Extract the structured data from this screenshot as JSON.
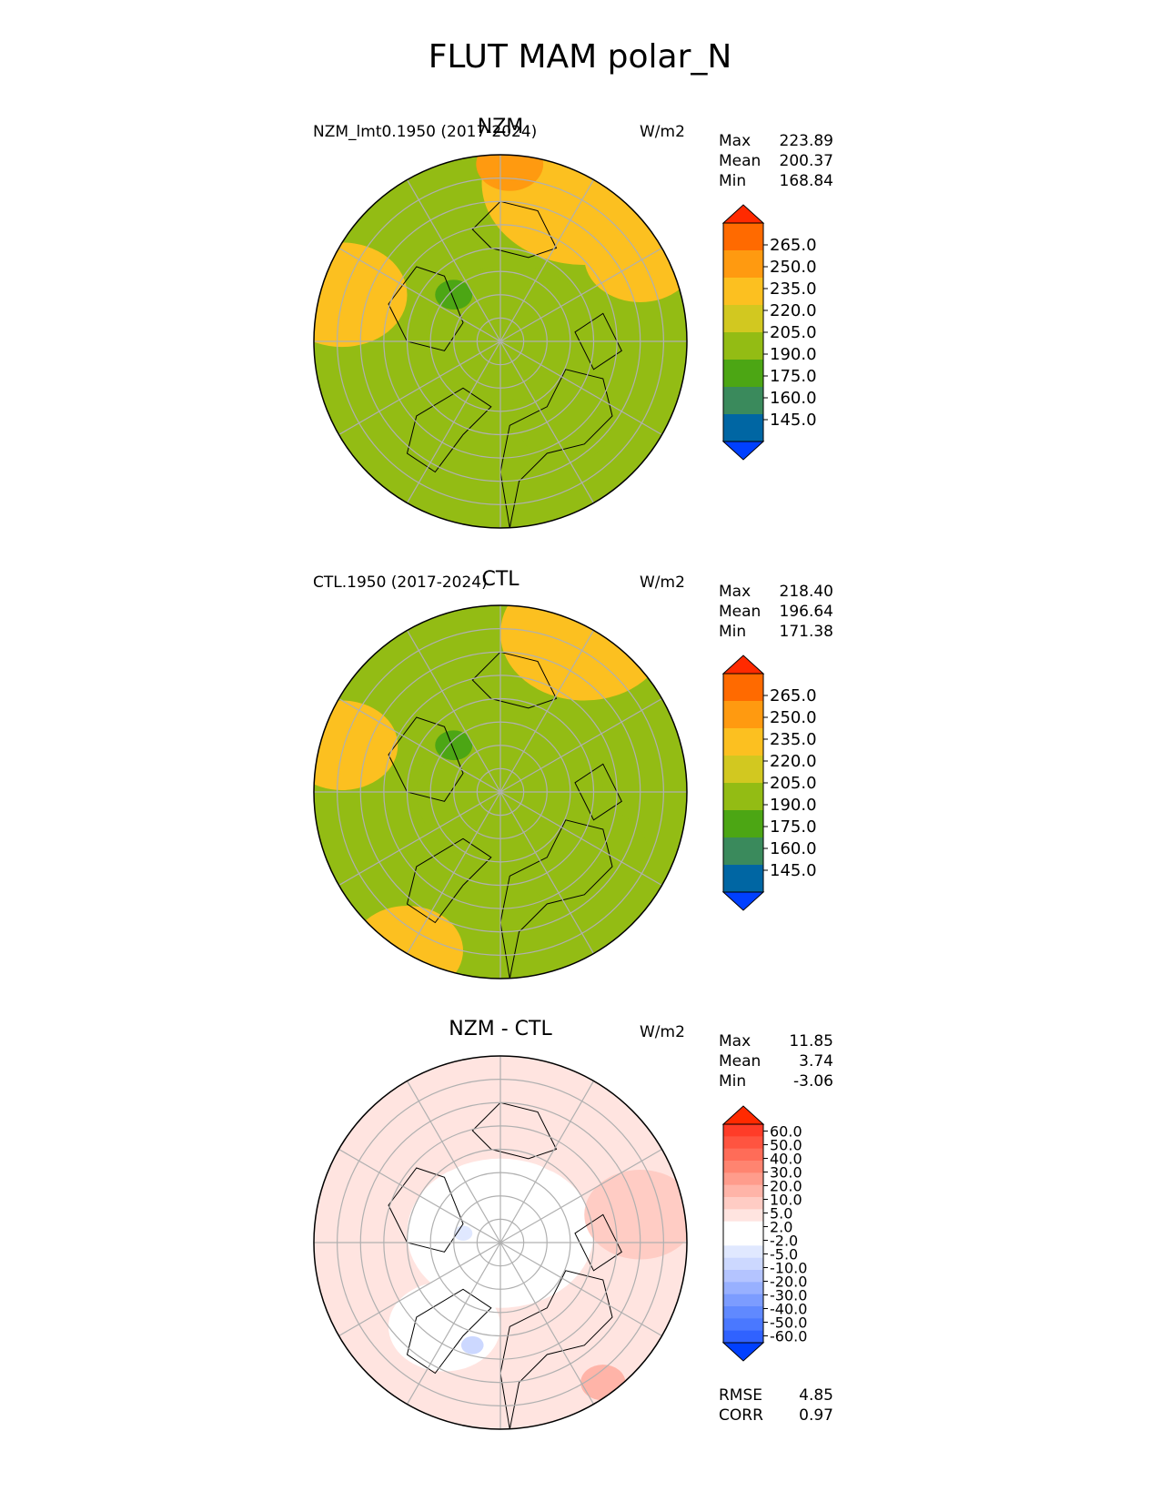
{
  "figure": {
    "title": "FLUT MAM polar_N"
  },
  "colors": {
    "main_levels": [
      "#0040ff",
      "#0066a3",
      "#3a8a5c",
      "#4ca614",
      "#93bc14",
      "#d2c820",
      "#fcc020",
      "#ff9a10",
      "#ff6a00",
      "#ff2a00"
    ],
    "main_ocean": "#93bc14",
    "diff_levels": [
      "#0040ff",
      "#3062ff",
      "#4a78ff",
      "#6089ff",
      "#7c9cff",
      "#98b0ff",
      "#b4c4ff",
      "#ccd8ff",
      "#e0e8ff",
      "#ffffff",
      "#ffffff",
      "#ffe4e0",
      "#ffccc4",
      "#ffb4a8",
      "#ff9c8c",
      "#ff8470",
      "#ff6c58",
      "#ff5440",
      "#ff3c28",
      "#ff2a00"
    ],
    "coast": "#000000",
    "grid": "#b0b0b0"
  },
  "chart_data": [
    {
      "type": "heatmap",
      "title": "NZM",
      "left_label": "NZM_lmt0.1950 (2017-2024)",
      "units": "W/m2",
      "stats": [
        {
          "label": "Max",
          "value": "223.89"
        },
        {
          "label": "Mean",
          "value": "200.37"
        },
        {
          "label": "Min",
          "value": "168.84"
        }
      ],
      "colorbar_ticks": [
        "265.0",
        "250.0",
        "235.0",
        "220.0",
        "205.0",
        "190.0",
        "175.0",
        "160.0",
        "145.0"
      ],
      "regions": [
        {
          "level": 6,
          "center": [
            0.45,
            0.85
          ],
          "size": 0.55
        },
        {
          "level": 6,
          "center": [
            -0.85,
            0.25
          ],
          "size": 0.35
        },
        {
          "level": 6,
          "center": [
            0.75,
            0.45
          ],
          "size": 0.3
        },
        {
          "level": 7,
          "center": [
            0.05,
            0.95
          ],
          "size": 0.18
        },
        {
          "level": 4,
          "center": [
            0.05,
            0.05
          ],
          "size": 0.45
        },
        {
          "level": 4,
          "center": [
            0.35,
            -0.45
          ],
          "size": 0.25
        },
        {
          "level": 3,
          "center": [
            -0.25,
            0.25
          ],
          "size": 0.1
        }
      ]
    },
    {
      "type": "heatmap",
      "title": "CTL",
      "left_label": "CTL.1950 (2017-2024)",
      "units": "W/m2",
      "stats": [
        {
          "label": "Max",
          "value": "218.40"
        },
        {
          "label": "Mean",
          "value": "196.64"
        },
        {
          "label": "Min",
          "value": "171.38"
        }
      ],
      "colorbar_ticks": [
        "265.0",
        "250.0",
        "235.0",
        "220.0",
        "205.0",
        "190.0",
        "175.0",
        "160.0",
        "145.0"
      ],
      "regions": [
        {
          "level": 6,
          "center": [
            0.45,
            0.85
          ],
          "size": 0.45
        },
        {
          "level": 6,
          "center": [
            -0.85,
            0.25
          ],
          "size": 0.3
        },
        {
          "level": 6,
          "center": [
            -0.5,
            -0.85
          ],
          "size": 0.3
        },
        {
          "level": 4,
          "center": [
            0.05,
            0.0
          ],
          "size": 0.5
        },
        {
          "level": 4,
          "center": [
            0.45,
            -0.35
          ],
          "size": 0.35
        },
        {
          "level": 3,
          "center": [
            -0.25,
            0.25
          ],
          "size": 0.1
        }
      ]
    },
    {
      "type": "heatmap",
      "title": "NZM - CTL",
      "left_label": "",
      "units": "W/m2",
      "stats": [
        {
          "label": "Max",
          "value": "11.85"
        },
        {
          "label": "Mean",
          "value": "3.74"
        },
        {
          "label": "Min",
          "value": "-3.06"
        }
      ],
      "colorbar_ticks": [
        "60.0",
        "50.0",
        "40.0",
        "30.0",
        "20.0",
        "10.0",
        "5.0",
        "2.0",
        "-2.0",
        "-5.0",
        "-10.0",
        "-20.0",
        "-30.0",
        "-40.0",
        "-50.0",
        "-60.0"
      ],
      "bottom_stats": [
        {
          "label": "RMSE",
          "value": "4.85"
        },
        {
          "label": "CORR",
          "value": "0.97"
        }
      ],
      "regions": [
        {
          "level": 9,
          "center": [
            0.0,
            0.05
          ],
          "size": 0.5
        },
        {
          "level": 9,
          "center": [
            -0.3,
            -0.45
          ],
          "size": 0.3
        },
        {
          "level": 11,
          "center": [
            -0.4,
            0.6
          ],
          "size": 0.3
        },
        {
          "level": 11,
          "center": [
            0.4,
            0.6
          ],
          "size": 0.3
        },
        {
          "level": 12,
          "center": [
            0.75,
            0.15
          ],
          "size": 0.3
        },
        {
          "level": 13,
          "center": [
            0.55,
            -0.75
          ],
          "size": 0.12
        },
        {
          "level": 7,
          "center": [
            -0.15,
            -0.55
          ],
          "size": 0.06
        },
        {
          "level": 8,
          "center": [
            -0.2,
            0.05
          ],
          "size": 0.05
        }
      ]
    }
  ]
}
